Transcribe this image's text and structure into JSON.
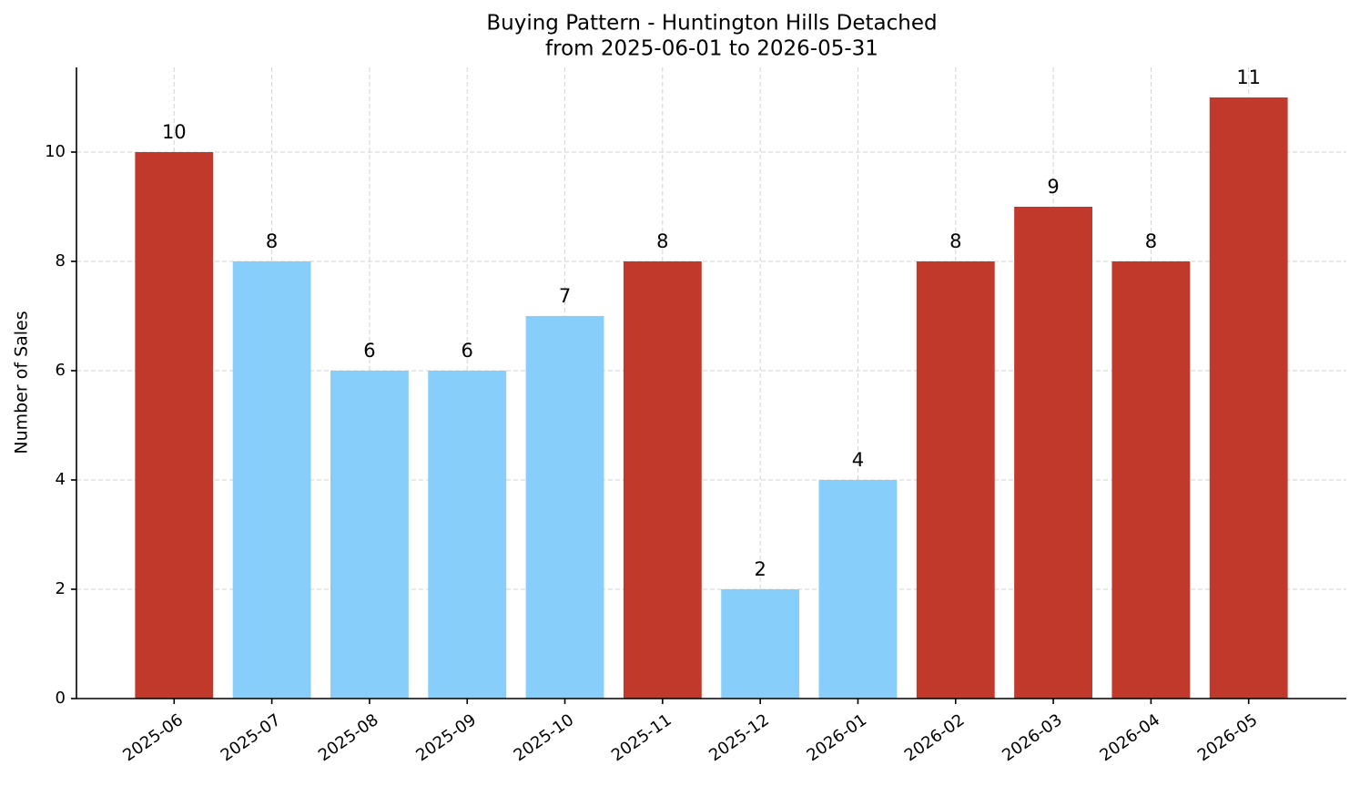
{
  "chart_data": {
    "type": "bar",
    "title": "Buying Pattern - Huntington Hills Detached",
    "subtitle": "from 2025-06-01 to 2026-05-31",
    "y_label": "Number of Sales",
    "categories": [
      "2025-06",
      "2025-07",
      "2025-08",
      "2025-09",
      "2025-10",
      "2025-11",
      "2025-12",
      "2026-01",
      "2026-02",
      "2026-03",
      "2026-04",
      "2026-05"
    ],
    "values": [
      10,
      8,
      6,
      6,
      7,
      8,
      2,
      4,
      8,
      9,
      8,
      11
    ],
    "colors": [
      "#c0392b",
      "#87cefa",
      "#87cefa",
      "#87cefa",
      "#87cefa",
      "#c0392b",
      "#87cefa",
      "#87cefa",
      "#c0392b",
      "#c0392b",
      "#c0392b",
      "#c0392b"
    ],
    "ylim": [
      0,
      11.55
    ],
    "yticks": [
      0,
      2,
      4,
      6,
      8,
      10
    ],
    "grid": true
  }
}
